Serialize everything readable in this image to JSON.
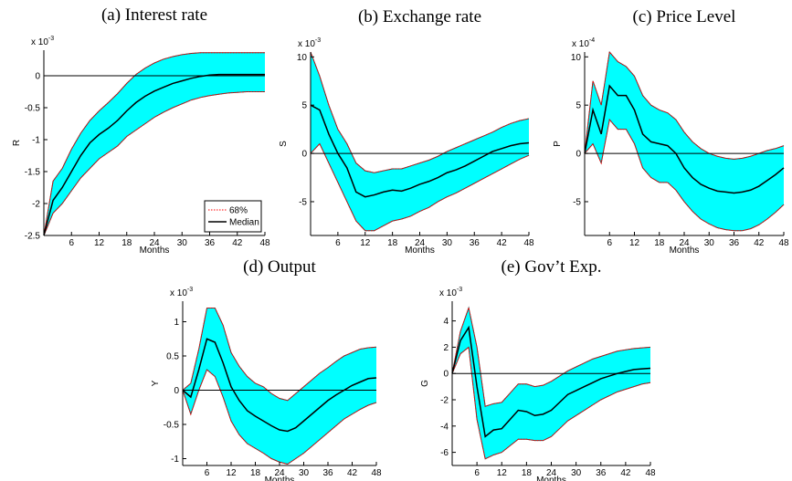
{
  "chart_data": [
    {
      "type": "line",
      "title": "(a)  Interest rate",
      "xlabel": "Months",
      "ylabel": "R",
      "scale_label": {
        "base": "x 10",
        "exponent": "-3"
      },
      "x": [
        0,
        2,
        4,
        6,
        8,
        10,
        12,
        14,
        16,
        18,
        20,
        22,
        24,
        26,
        28,
        30,
        32,
        34,
        36,
        38,
        40,
        42,
        44,
        46,
        48
      ],
      "xlim": [
        0,
        48
      ],
      "xticks": [
        6,
        12,
        18,
        24,
        30,
        36,
        42,
        48
      ],
      "ylim": [
        -2.5,
        0.4
      ],
      "yticks": [
        -2.5,
        -2,
        -1.5,
        -1,
        -0.5,
        0
      ],
      "legend": "lower right",
      "series": [
        {
          "name": "68%",
          "color": "#ff0000",
          "fill": "#00ffff",
          "upper": [
            -2.5,
            -1.65,
            -1.45,
            -1.15,
            -0.9,
            -0.7,
            -0.55,
            -0.42,
            -0.28,
            -0.12,
            0.02,
            0.12,
            0.2,
            0.26,
            0.3,
            0.33,
            0.35,
            0.36,
            0.36,
            0.36,
            0.36,
            0.36,
            0.36,
            0.36,
            0.36
          ],
          "lower": [
            -2.5,
            -2.15,
            -2.0,
            -1.8,
            -1.6,
            -1.45,
            -1.3,
            -1.2,
            -1.1,
            -0.95,
            -0.85,
            -0.75,
            -0.65,
            -0.57,
            -0.5,
            -0.44,
            -0.38,
            -0.34,
            -0.31,
            -0.29,
            -0.27,
            -0.26,
            -0.25,
            -0.25,
            -0.25
          ]
        },
        {
          "name": "Median",
          "color": "#000000",
          "values": [
            -2.5,
            -1.95,
            -1.75,
            -1.5,
            -1.25,
            -1.05,
            -0.92,
            -0.82,
            -0.7,
            -0.55,
            -0.42,
            -0.32,
            -0.24,
            -0.18,
            -0.12,
            -0.08,
            -0.04,
            -0.01,
            0.01,
            0.02,
            0.02,
            0.02,
            0.02,
            0.02,
            0.02
          ]
        }
      ]
    },
    {
      "type": "line",
      "title": "(b)  Exchange rate",
      "xlabel": "Months",
      "ylabel": "S",
      "scale_label": {
        "base": "x 10",
        "exponent": "-3"
      },
      "x": [
        0,
        2,
        4,
        6,
        8,
        10,
        12,
        14,
        16,
        18,
        20,
        22,
        24,
        26,
        28,
        30,
        32,
        34,
        36,
        38,
        40,
        42,
        44,
        46,
        48
      ],
      "xlim": [
        0,
        48
      ],
      "xticks": [
        6,
        12,
        18,
        24,
        30,
        36,
        42,
        48
      ],
      "ylim": [
        -8.5,
        10.5
      ],
      "yticks": [
        -5,
        0,
        5,
        10
      ],
      "series": [
        {
          "color": "#ff0000",
          "fill": "#00ffff",
          "upper": [
            10.5,
            8,
            5,
            2.5,
            1,
            -1,
            -1.8,
            -2,
            -1.8,
            -1.6,
            -1.6,
            -1.3,
            -1,
            -0.7,
            -0.3,
            0.2,
            0.6,
            1,
            1.4,
            1.8,
            2.2,
            2.7,
            3.1,
            3.4,
            3.6
          ],
          "lower": [
            0,
            1,
            -1,
            -3,
            -5,
            -7,
            -8,
            -8,
            -7.5,
            -7,
            -6.8,
            -6.5,
            -6,
            -5.6,
            -5,
            -4.5,
            -4.1,
            -3.6,
            -3.1,
            -2.6,
            -2.1,
            -1.6,
            -1.1,
            -0.6,
            -0.2
          ]
        },
        {
          "color": "#000000",
          "values": [
            5,
            4.5,
            2,
            0,
            -1.5,
            -4,
            -4.5,
            -4.3,
            -4,
            -3.8,
            -3.9,
            -3.6,
            -3.2,
            -2.9,
            -2.5,
            -2.0,
            -1.7,
            -1.3,
            -0.8,
            -0.3,
            0.2,
            0.5,
            0.8,
            1.0,
            1.1
          ]
        }
      ]
    },
    {
      "type": "line",
      "title": "(c)  Price Level",
      "xlabel": "Months",
      "ylabel": "P",
      "scale_label": {
        "base": "x 10",
        "exponent": "-4"
      },
      "x": [
        0,
        2,
        4,
        6,
        8,
        10,
        12,
        14,
        16,
        18,
        20,
        22,
        24,
        26,
        28,
        30,
        32,
        34,
        36,
        38,
        40,
        42,
        44,
        46,
        48
      ],
      "xlim": [
        0,
        48
      ],
      "xticks": [
        6,
        12,
        18,
        24,
        30,
        36,
        42,
        48
      ],
      "ylim": [
        -8.5,
        10.5
      ],
      "yticks": [
        -5,
        0,
        5,
        10
      ],
      "series": [
        {
          "color": "#ff0000",
          "fill": "#00ffff",
          "upper": [
            0,
            7.5,
            5,
            10.5,
            9.5,
            9,
            8,
            6,
            5,
            4.5,
            4.2,
            3.5,
            2.2,
            1.2,
            0.5,
            0,
            -0.3,
            -0.5,
            -0.6,
            -0.5,
            -0.3,
            0,
            0.3,
            0.5,
            0.8
          ],
          "lower": [
            0,
            1,
            -1,
            3.5,
            2.5,
            2.5,
            1,
            -1.5,
            -2.5,
            -3,
            -3,
            -3.8,
            -5,
            -6,
            -6.8,
            -7.3,
            -7.7,
            -7.9,
            -8,
            -8,
            -7.8,
            -7.4,
            -6.8,
            -6.1,
            -5.3
          ]
        },
        {
          "color": "#000000",
          "values": [
            0,
            4.5,
            2,
            7,
            6,
            6,
            4.5,
            2,
            1.2,
            1,
            0.8,
            0,
            -1.5,
            -2.5,
            -3.2,
            -3.6,
            -3.9,
            -4,
            -4.1,
            -4,
            -3.8,
            -3.4,
            -2.8,
            -2.2,
            -1.5
          ]
        }
      ]
    },
    {
      "type": "line",
      "title": "(d)  Output",
      "xlabel": "Months",
      "ylabel": "Y",
      "scale_label": {
        "base": "x 10",
        "exponent": "-3"
      },
      "x": [
        0,
        2,
        4,
        6,
        8,
        10,
        12,
        14,
        16,
        18,
        20,
        22,
        24,
        26,
        28,
        30,
        32,
        34,
        36,
        38,
        40,
        42,
        44,
        46,
        48
      ],
      "xlim": [
        0,
        48
      ],
      "xticks": [
        6,
        12,
        18,
        24,
        30,
        36,
        42,
        48
      ],
      "ylim": [
        -1.1,
        1.3
      ],
      "yticks": [
        -1,
        -0.5,
        0,
        0.5,
        1
      ],
      "series": [
        {
          "color": "#ff0000",
          "fill": "#00ffff",
          "upper": [
            0,
            0.1,
            0.6,
            1.2,
            1.2,
            0.95,
            0.55,
            0.35,
            0.2,
            0.1,
            0.05,
            -0.05,
            -0.12,
            -0.15,
            -0.05,
            0.05,
            0.15,
            0.25,
            0.33,
            0.42,
            0.5,
            0.55,
            0.6,
            0.62,
            0.63
          ],
          "lower": [
            0,
            -0.35,
            0,
            0.3,
            0.2,
            -0.1,
            -0.45,
            -0.65,
            -0.78,
            -0.85,
            -0.92,
            -1.0,
            -1.05,
            -1.08,
            -1.0,
            -0.92,
            -0.82,
            -0.72,
            -0.62,
            -0.52,
            -0.42,
            -0.35,
            -0.28,
            -0.22,
            -0.18
          ]
        },
        {
          "color": "#000000",
          "values": [
            0,
            -0.1,
            0.3,
            0.75,
            0.7,
            0.4,
            0.05,
            -0.15,
            -0.3,
            -0.38,
            -0.45,
            -0.52,
            -0.58,
            -0.6,
            -0.55,
            -0.45,
            -0.35,
            -0.25,
            -0.15,
            -0.07,
            0,
            0.07,
            0.12,
            0.17,
            0.18
          ]
        }
      ]
    },
    {
      "type": "line",
      "title": "(e)  Gov’t Exp.",
      "xlabel": "Months",
      "ylabel": "G",
      "scale_label": {
        "base": "x 10",
        "exponent": "-3"
      },
      "x": [
        0,
        2,
        4,
        6,
        8,
        10,
        12,
        14,
        16,
        18,
        20,
        22,
        24,
        26,
        28,
        30,
        32,
        34,
        36,
        38,
        40,
        42,
        44,
        46,
        48
      ],
      "xlim": [
        0,
        48
      ],
      "xticks": [
        6,
        12,
        18,
        24,
        30,
        36,
        42,
        48
      ],
      "ylim": [
        -7,
        5.5
      ],
      "yticks": [
        -6,
        -4,
        -2,
        0,
        2,
        4
      ],
      "series": [
        {
          "color": "#ff0000",
          "fill": "#00ffff",
          "upper": [
            0,
            3.2,
            5,
            2,
            -2.5,
            -2.3,
            -2.2,
            -1.5,
            -0.8,
            -0.8,
            -1,
            -0.9,
            -0.6,
            -0.2,
            0.2,
            0.5,
            0.8,
            1.1,
            1.3,
            1.5,
            1.7,
            1.8,
            1.9,
            1.95,
            2
          ],
          "lower": [
            0,
            1.5,
            2,
            -3.5,
            -6.5,
            -6.2,
            -6,
            -5.5,
            -5,
            -5,
            -5.1,
            -5.1,
            -4.8,
            -4.2,
            -3.6,
            -3.2,
            -2.8,
            -2.4,
            -2,
            -1.7,
            -1.4,
            -1.2,
            -1,
            -0.8,
            -0.7
          ]
        },
        {
          "color": "#000000",
          "values": [
            0,
            2.5,
            3.5,
            -1,
            -4.8,
            -4.3,
            -4.2,
            -3.5,
            -2.8,
            -2.9,
            -3.2,
            -3.1,
            -2.8,
            -2.2,
            -1.6,
            -1.3,
            -1,
            -0.7,
            -0.4,
            -0.2,
            0,
            0.15,
            0.3,
            0.35,
            0.4
          ]
        }
      ]
    }
  ]
}
